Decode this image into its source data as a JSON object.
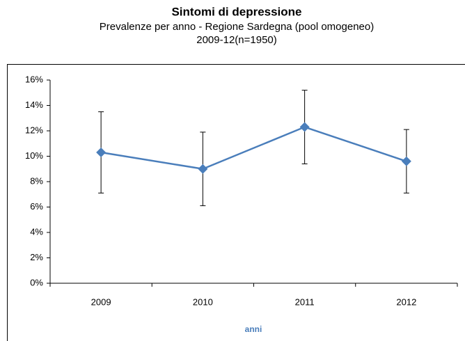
{
  "chart_data": {
    "type": "line",
    "title": "Sintomi di depressione",
    "subtitle": [
      "Prevalenze per anno - Regione Sardegna (pool omogeneo)",
      "2009-12(n=1950)"
    ],
    "x_label": "anni",
    "categories": [
      "2009",
      "2010",
      "2011",
      "2012"
    ],
    "values": [
      10.3,
      9.0,
      12.3,
      9.6
    ],
    "errors": [
      3.2,
      2.9,
      2.9,
      2.5
    ],
    "color": "#4a7ebb",
    "ylim": [
      0,
      16
    ],
    "yticks": [
      {
        "value": 0,
        "label": "0%"
      },
      {
        "value": 2,
        "label": "2%"
      },
      {
        "value": 4,
        "label": "4%"
      },
      {
        "value": 6,
        "label": "6%"
      },
      {
        "value": 8,
        "label": "8%"
      },
      {
        "value": 10,
        "label": "10%"
      },
      {
        "value": 12,
        "label": "12%"
      },
      {
        "value": 14,
        "label": "14%"
      },
      {
        "value": 16,
        "label": "16%"
      }
    ]
  }
}
